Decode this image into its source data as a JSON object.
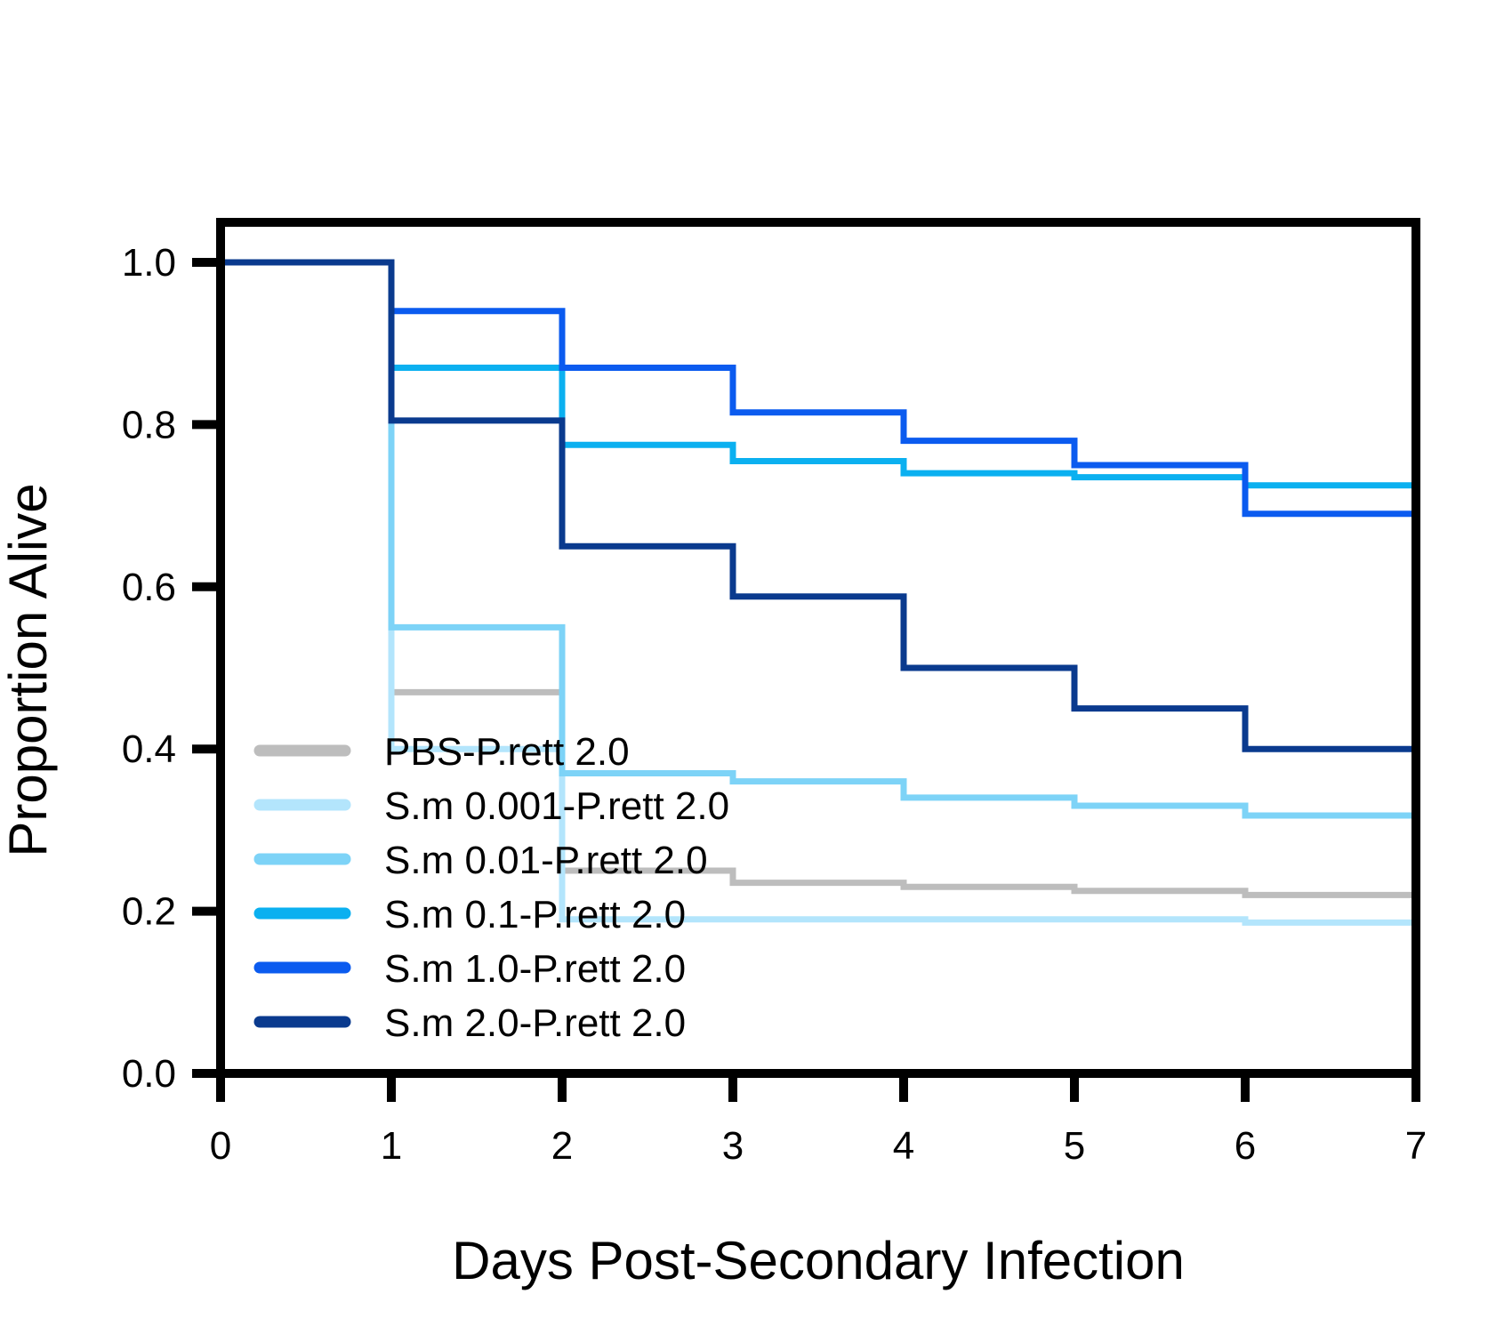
{
  "chart_data": {
    "type": "line",
    "step": true,
    "title": "",
    "xlabel": "Days Post-Secondary Infection",
    "ylabel": "Proportion Alive",
    "xlim": [
      0,
      7
    ],
    "ylim": [
      0,
      1
    ],
    "xticks": [
      0,
      1,
      2,
      3,
      4,
      5,
      6,
      7
    ],
    "xtick_labels": [
      "0",
      "1",
      "2",
      "3",
      "4",
      "5",
      "6",
      "7"
    ],
    "yticks": [
      0,
      0.2,
      0.4,
      0.6,
      0.8,
      1.0
    ],
    "ytick_labels": [
      "0.0",
      "0.2",
      "0.4",
      "0.6",
      "0.8",
      "1.0"
    ],
    "grid": false,
    "legend_position": "bottom-left",
    "x": [
      0,
      1,
      2,
      3,
      4,
      5,
      6,
      7
    ],
    "series": [
      {
        "name": "PBS-P.rett 2.0",
        "color": "#bdbdbd",
        "values": [
          1.0,
          0.47,
          0.25,
          0.235,
          0.23,
          0.225,
          0.22,
          0.22
        ]
      },
      {
        "name": "S.m 0.001-P.rett 2.0",
        "color": "#b3e5fc",
        "values": [
          1.0,
          0.4,
          0.19,
          0.19,
          0.19,
          0.19,
          0.186,
          0.186
        ]
      },
      {
        "name": "S.m 0.01-P.rett 2.0",
        "color": "#7dd3f7",
        "values": [
          1.0,
          0.55,
          0.37,
          0.36,
          0.34,
          0.33,
          0.318,
          0.318
        ]
      },
      {
        "name": "S.m 0.1-P.rett 2.0",
        "color": "#0bb0f0",
        "values": [
          1.0,
          0.87,
          0.775,
          0.755,
          0.74,
          0.735,
          0.725,
          0.725
        ]
      },
      {
        "name": "S.m 1.0-P.rett 2.0",
        "color": "#0b5bef",
        "values": [
          1.0,
          0.94,
          0.87,
          0.815,
          0.78,
          0.75,
          0.69,
          0.69
        ]
      },
      {
        "name": "S.m 2.0-P.rett 2.0",
        "color": "#0a3a8e",
        "values": [
          1.0,
          0.805,
          0.65,
          0.588,
          0.5,
          0.45,
          0.4,
          0.4
        ]
      }
    ],
    "colors": {
      "axis": "#000000",
      "background": "#ffffff"
    }
  }
}
